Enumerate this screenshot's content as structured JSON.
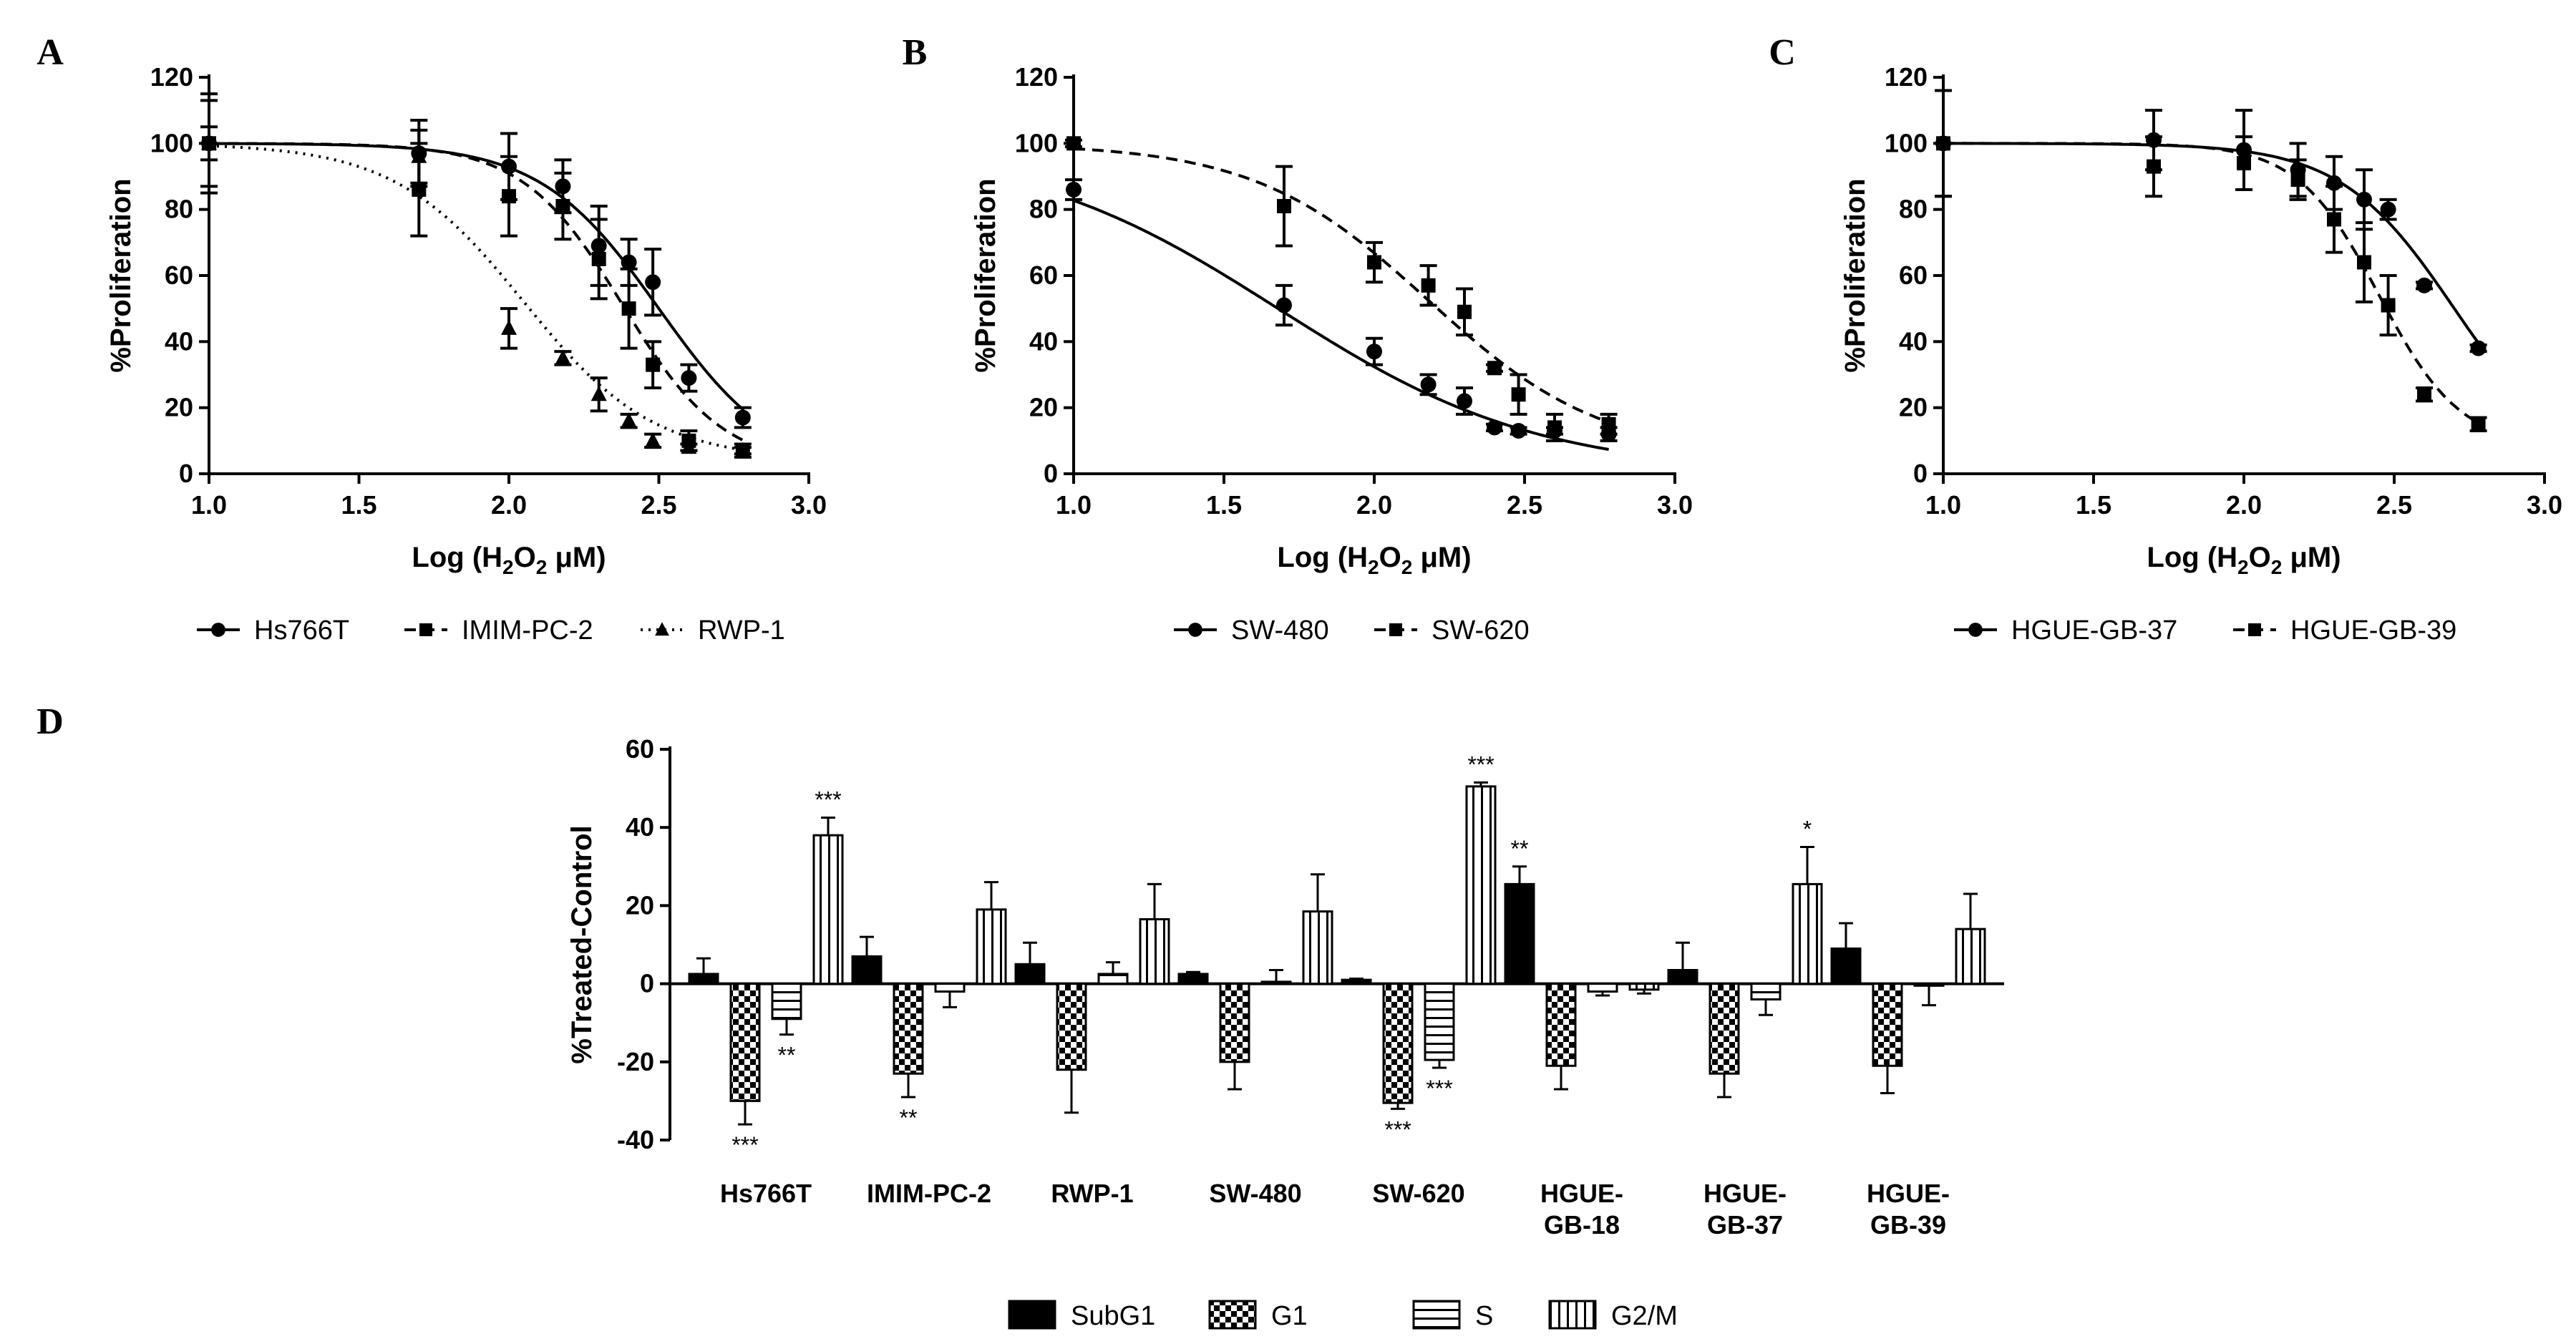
{
  "chart_data": [
    {
      "id": "A",
      "type": "line",
      "panel_label": "A",
      "xlabel_prefix": "Log (H",
      "xlabel_sub1": "2",
      "xlabel_mid": "O",
      "xlabel_sub2": "2",
      "xlabel_suffix": " μM)",
      "ylabel": "%Proliferation",
      "xlim": [
        1.0,
        3.0
      ],
      "ylim": [
        0,
        120
      ],
      "xticks": [
        "1.0",
        "1.5",
        "2.0",
        "2.5",
        "3.0"
      ],
      "yticks": [
        "0",
        "20",
        "40",
        "60",
        "80",
        "100",
        "120"
      ],
      "legend_position": "bottom",
      "series": [
        {
          "name": "Hs766T",
          "marker": "circle",
          "line": "solid",
          "fit": {
            "top": 100,
            "bottom": 0,
            "logIC50": 2.5,
            "hill": 2.2
          },
          "x": [
            1.0,
            1.7,
            2.0,
            2.18,
            2.3,
            2.4,
            2.48,
            2.6,
            2.78
          ],
          "y": [
            100,
            97,
            93,
            87,
            69,
            64,
            58,
            29,
            17
          ],
          "err": [
            15,
            10,
            10,
            8,
            12,
            7,
            10,
            4,
            3
          ]
        },
        {
          "name": "IMIM-PC-2",
          "marker": "square",
          "line": "dashed",
          "fit": {
            "top": 100,
            "bottom": 2,
            "logIC50": 2.38,
            "hill": 2.6
          },
          "x": [
            1.0,
            1.7,
            2.0,
            2.18,
            2.3,
            2.4,
            2.48,
            2.6,
            2.78
          ],
          "y": [
            100,
            86,
            84,
            81,
            65,
            50,
            33,
            10,
            7
          ],
          "err": [
            13,
            14,
            12,
            10,
            12,
            12,
            7,
            3,
            2
          ]
        },
        {
          "name": "RWP-1",
          "marker": "triangle",
          "line": "dotted",
          "fit": {
            "top": 100,
            "bottom": 4,
            "logIC50": 2.05,
            "hill": 2.0
          },
          "x": [
            1.0,
            1.7,
            2.0,
            2.18,
            2.3,
            2.4,
            2.48,
            2.6,
            2.78
          ],
          "y": [
            100,
            96,
            44,
            35,
            24,
            16,
            10,
            8,
            7
          ],
          "err": [
            5,
            8,
            6,
            2,
            5,
            2,
            2,
            1,
            1
          ]
        }
      ]
    },
    {
      "id": "B",
      "type": "line",
      "panel_label": "B",
      "xlabel_prefix": "Log (H",
      "xlabel_sub1": "2",
      "xlabel_mid": "O",
      "xlabel_sub2": "2",
      "xlabel_suffix": " μM)",
      "ylabel": "%Proliferation",
      "xlim": [
        1.0,
        3.0
      ],
      "ylim": [
        0,
        120
      ],
      "xticks": [
        "1.0",
        "1.5",
        "2.0",
        "2.5",
        "3.0"
      ],
      "yticks": [
        "0",
        "20",
        "40",
        "60",
        "80",
        "100",
        "120"
      ],
      "legend_position": "bottom",
      "series": [
        {
          "name": "SW-480",
          "marker": "circle",
          "line": "solid",
          "fit": {
            "top": 100,
            "bottom": 0,
            "logIC50": 1.68,
            "hill": 1.0
          },
          "x": [
            1.0,
            1.7,
            2.0,
            2.18,
            2.3,
            2.4,
            2.48,
            2.6,
            2.78
          ],
          "y": [
            86,
            51,
            37,
            27,
            22,
            14,
            13,
            13,
            12
          ],
          "err": [
            3,
            6,
            4,
            3,
            4,
            1,
            1,
            1,
            2
          ]
        },
        {
          "name": "SW-620",
          "marker": "square",
          "line": "dashed",
          "fit": {
            "top": 100,
            "bottom": 5,
            "logIC50": 2.18,
            "hill": 1.5
          },
          "x": [
            1.0,
            1.7,
            2.0,
            2.18,
            2.3,
            2.4,
            2.48,
            2.6,
            2.78
          ],
          "y": [
            100,
            81,
            64,
            57,
            49,
            32,
            24,
            14,
            15
          ],
          "err": [
            1,
            12,
            6,
            6,
            7,
            1,
            6,
            4,
            3
          ]
        }
      ]
    },
    {
      "id": "C",
      "type": "line",
      "panel_label": "C",
      "xlabel_prefix": "Log (H",
      "xlabel_sub1": "2",
      "xlabel_mid": "O",
      "xlabel_sub2": "2",
      "xlabel_suffix": " μM)",
      "ylabel": "%Proliferation",
      "xlim": [
        1.0,
        3.0
      ],
      "ylim": [
        0,
        120
      ],
      "xticks": [
        "1.0",
        "1.5",
        "2.0",
        "2.5",
        "3.0"
      ],
      "yticks": [
        "0",
        "20",
        "40",
        "60",
        "80",
        "100",
        "120"
      ],
      "legend_position": "bottom",
      "series": [
        {
          "name": "HGUE-GB-37",
          "marker": "circle",
          "line": "solid",
          "fit": {
            "top": 100,
            "bottom": 0,
            "logIC50": 2.7,
            "hill": 2.3
          },
          "x": [
            1.0,
            1.7,
            2.0,
            2.18,
            2.3,
            2.4,
            2.48,
            2.6,
            2.78
          ],
          "y": [
            100,
            101,
            98,
            92,
            88,
            83,
            80,
            57,
            38
          ],
          "err": [
            16,
            9,
            12,
            8,
            8,
            9,
            3,
            1,
            1
          ]
        },
        {
          "name": "HGUE-GB-39",
          "marker": "square",
          "line": "dashed",
          "fit": {
            "top": 100,
            "bottom": 8,
            "logIC50": 2.45,
            "hill": 3.2
          },
          "x": [
            1.0,
            1.7,
            2.0,
            2.18,
            2.3,
            2.4,
            2.48,
            2.6,
            2.78
          ],
          "y": [
            100,
            93,
            94,
            89,
            77,
            64,
            51,
            24,
            15
          ],
          "err": [
            16,
            9,
            8,
            6,
            10,
            12,
            9,
            2,
            2
          ]
        }
      ]
    },
    {
      "id": "D",
      "type": "bar",
      "panel_label": "D",
      "ylabel": "%Treated-Control",
      "ylim": [
        -40,
        60
      ],
      "yticks": [
        "-40",
        "-20",
        "0",
        "20",
        "40",
        "60"
      ],
      "categories": [
        "Hs766T",
        "IMIM-PC-2",
        "RWP-1",
        "SW-480",
        "SW-620",
        "HGUE-|GB-18",
        "HGUE-|GB-37",
        "HGUE-|GB-39"
      ],
      "legend_position": "bottom",
      "series": [
        {
          "name": "SubG1",
          "pattern": "solid",
          "values": [
            2.5,
            7,
            5,
            2.5,
            1,
            25.5,
            3.5,
            9
          ],
          "err": [
            4,
            5,
            5.5,
            0.5,
            0.3,
            4.5,
            7,
            6.5
          ],
          "sig": [
            "",
            "",
            "",
            "",
            "",
            "**",
            "",
            ""
          ]
        },
        {
          "name": "G1",
          "pattern": "checker",
          "values": [
            -30,
            -23,
            -22,
            -20,
            -30.5,
            -21,
            -23,
            -21
          ],
          "err": [
            6,
            6,
            11,
            7,
            1.5,
            6,
            6,
            7
          ],
          "sig": [
            "***",
            "**",
            "",
            "",
            "***",
            "",
            "",
            ""
          ]
        },
        {
          "name": "S",
          "pattern": "hlines",
          "values": [
            -9,
            -2,
            2.5,
            0.5,
            -19.5,
            -2,
            -4,
            -0.5
          ],
          "err": [
            4,
            4,
            3,
            3,
            2,
            1,
            4,
            5
          ],
          "sig": [
            "**",
            "",
            "",
            "",
            "***",
            "",
            "",
            ""
          ]
        },
        {
          "name": "G2/M",
          "pattern": "vlines",
          "values": [
            38,
            19,
            16.5,
            18.5,
            50.5,
            -1.5,
            25.5,
            14
          ],
          "err": [
            4.5,
            7,
            9,
            9.5,
            1,
            1,
            9.5,
            9
          ],
          "sig": [
            "***",
            "",
            "",
            "",
            "***",
            "",
            "*",
            ""
          ]
        }
      ]
    }
  ]
}
